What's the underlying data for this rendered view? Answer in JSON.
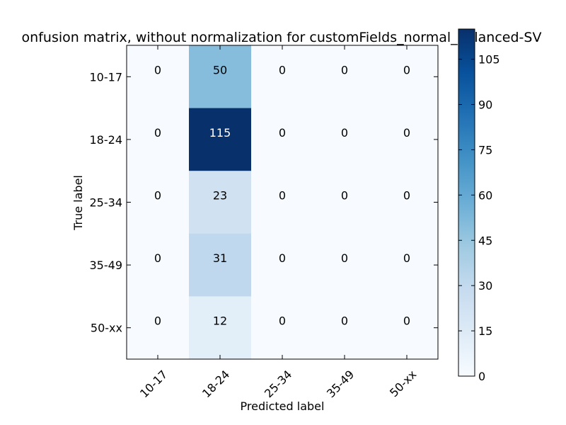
{
  "chart_data": {
    "type": "heatmap",
    "title": "onfusion matrix, without normalization for customFields_normal_balanced-SV",
    "xlabel": "Predicted label",
    "ylabel": "True label",
    "x_categories": [
      "10-17",
      "18-24",
      "25-34",
      "35-49",
      "50-xx"
    ],
    "y_categories": [
      "10-17",
      "18-24",
      "25-34",
      "35-49",
      "50-xx"
    ],
    "values": [
      [
        0,
        50,
        0,
        0,
        0
      ],
      [
        0,
        115,
        0,
        0,
        0
      ],
      [
        0,
        23,
        0,
        0,
        0
      ],
      [
        0,
        31,
        0,
        0,
        0
      ],
      [
        0,
        12,
        0,
        0,
        0
      ]
    ],
    "colormap": "Blues",
    "colorbar": {
      "vmin": 0,
      "vmax": 115,
      "ticks": [
        0,
        15,
        30,
        45,
        60,
        75,
        90,
        105
      ]
    },
    "grid": false
  }
}
